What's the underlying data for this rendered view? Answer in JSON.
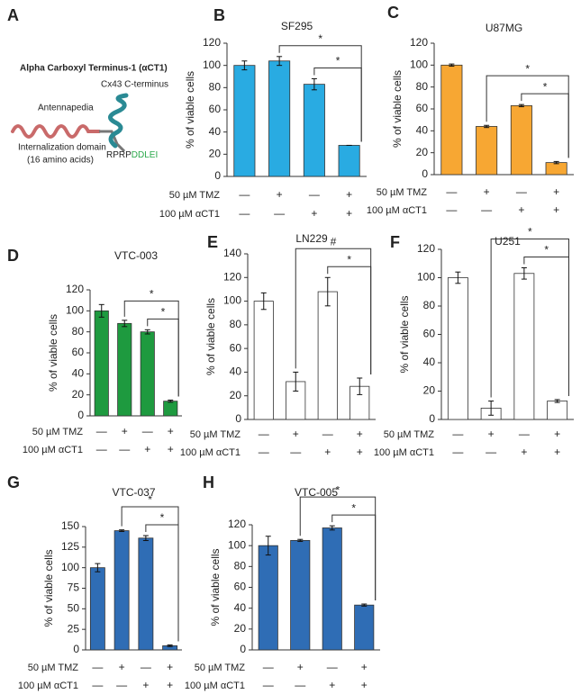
{
  "panel_a": {
    "letter": "A",
    "title": "Alpha Carboxyl Terminus-1 (αCT1)",
    "cterm": "Cx43 C-terminus",
    "antennapedia": "Antennapedia",
    "domain": "Internalization domain",
    "amino": "(16 amino acids)",
    "seq1": "RPRP",
    "seq2": "DDLEI"
  },
  "chart_data": [
    {
      "type": "bar",
      "panel": "B",
      "title": "SF295",
      "y_label": "% of viable cells",
      "ylim": [
        0,
        120
      ],
      "yticks": [
        0,
        20,
        40,
        60,
        80,
        100,
        120
      ],
      "values": [
        100,
        104,
        83,
        28
      ],
      "errors": [
        4,
        4,
        5,
        0
      ],
      "color": "#29abe2",
      "treatments": [
        {
          "name": "50 µM TMZ",
          "signs": [
            "—",
            "+",
            "—",
            "+"
          ]
        },
        {
          "name": "100 µM αCT1",
          "signs": [
            "—",
            "—",
            "+",
            "+"
          ]
        }
      ],
      "significance": [
        {
          "bars": [
            1,
            3
          ],
          "label": "*"
        },
        {
          "bars": [
            2,
            3
          ],
          "label": "*"
        }
      ]
    },
    {
      "type": "bar",
      "panel": "C",
      "title": "U87MG",
      "y_label": "% of viable cells",
      "ylim": [
        0,
        120
      ],
      "yticks": [
        0,
        20,
        40,
        60,
        80,
        100,
        120
      ],
      "values": [
        100,
        44,
        63,
        11
      ],
      "errors": [
        1,
        1,
        1,
        1
      ],
      "color": "#f7a733",
      "treatments": [
        {
          "name": "50 µM TMZ",
          "signs": [
            "—",
            "+",
            "—",
            "+"
          ]
        },
        {
          "name": "100 µM αCT1",
          "signs": [
            "—",
            "—",
            "+",
            "+"
          ]
        }
      ],
      "significance": [
        {
          "bars": [
            1,
            3
          ],
          "label": "*"
        },
        {
          "bars": [
            2,
            3
          ],
          "label": "*"
        }
      ]
    },
    {
      "type": "bar",
      "panel": "D",
      "title": "VTC-003",
      "y_label": "% of viable cells",
      "ylim": [
        0,
        120
      ],
      "yticks": [
        0,
        20,
        40,
        60,
        80,
        100,
        120
      ],
      "values": [
        100,
        88,
        80,
        14
      ],
      "errors": [
        6,
        3,
        2,
        1
      ],
      "color": "#1e9a3f",
      "treatments": [
        {
          "name": "50 µM TMZ",
          "signs": [
            "—",
            "+",
            "—",
            "+"
          ]
        },
        {
          "name": "100 µM αCT1",
          "signs": [
            "—",
            "—",
            "+",
            "+"
          ]
        }
      ],
      "significance": [
        {
          "bars": [
            1,
            3
          ],
          "label": "*"
        },
        {
          "bars": [
            2,
            3
          ],
          "label": "*"
        }
      ]
    },
    {
      "type": "bar",
      "panel": "E",
      "title": "LN229",
      "y_label": "% of viable cells",
      "ylim": [
        0,
        140
      ],
      "yticks": [
        0,
        20,
        40,
        60,
        80,
        100,
        120,
        140
      ],
      "values": [
        100,
        32,
        108,
        28
      ],
      "errors": [
        7,
        8,
        12,
        7
      ],
      "color": "#ffffff",
      "treatments": [
        {
          "name": "50 µM TMZ",
          "signs": [
            "—",
            "+",
            "—",
            "+"
          ]
        },
        {
          "name": "100 µM αCT1",
          "signs": [
            "—",
            "—",
            "+",
            "+"
          ]
        }
      ],
      "significance": [
        {
          "bars": [
            1,
            3
          ],
          "label": "#"
        },
        {
          "bars": [
            2,
            3
          ],
          "label": "*"
        }
      ]
    },
    {
      "type": "bar",
      "panel": "F",
      "title": "U251",
      "y_label": "% of viable cells",
      "ylim": [
        0,
        120
      ],
      "yticks": [
        0,
        20,
        40,
        60,
        80,
        100,
        120
      ],
      "values": [
        100,
        8,
        103,
        13
      ],
      "errors": [
        4,
        5,
        4,
        1
      ],
      "color": "#ffffff",
      "treatments": [
        {
          "name": "50 µM TMZ",
          "signs": [
            "—",
            "+",
            "—",
            "+"
          ]
        },
        {
          "name": "100 µM αCT1",
          "signs": [
            "—",
            "—",
            "+",
            "+"
          ]
        }
      ],
      "significance": [
        {
          "bars": [
            1,
            3
          ],
          "label": "*"
        },
        {
          "bars": [
            2,
            3
          ],
          "label": "*"
        }
      ]
    },
    {
      "type": "bar",
      "panel": "G",
      "title": "VTC-037",
      "y_label": "% of viable cells",
      "ylim": [
        0,
        150
      ],
      "yticks": [
        0,
        25,
        50,
        75,
        100,
        125,
        150
      ],
      "values": [
        100,
        145,
        136,
        5
      ],
      "errors": [
        5,
        1,
        3,
        1
      ],
      "color": "#2f6db5",
      "treatments": [
        {
          "name": "50 µM TMZ",
          "signs": [
            "—",
            "+",
            "—",
            "+"
          ]
        },
        {
          "name": "100 µM αCT1",
          "signs": [
            "—",
            "—",
            "+",
            "+"
          ]
        }
      ],
      "significance": [
        {
          "bars": [
            1,
            3
          ],
          "label": "*"
        },
        {
          "bars": [
            2,
            3
          ],
          "label": "*"
        }
      ]
    },
    {
      "type": "bar",
      "panel": "H",
      "title": "VTC-005",
      "y_label": "% of viable cells",
      "ylim": [
        0,
        120
      ],
      "yticks": [
        0,
        20,
        40,
        60,
        80,
        100,
        120
      ],
      "values": [
        100,
        105,
        117,
        43
      ],
      "errors": [
        9,
        1,
        2,
        1
      ],
      "color": "#2f6db5",
      "treatments": [
        {
          "name": "50 µM TMZ",
          "signs": [
            "—",
            "+",
            "—",
            "+"
          ]
        },
        {
          "name": "100 µM αCT1",
          "signs": [
            "—",
            "—",
            "+",
            "+"
          ]
        }
      ],
      "significance": [
        {
          "bars": [
            1,
            3
          ],
          "label": "*"
        },
        {
          "bars": [
            2,
            3
          ],
          "label": "*"
        }
      ]
    }
  ]
}
